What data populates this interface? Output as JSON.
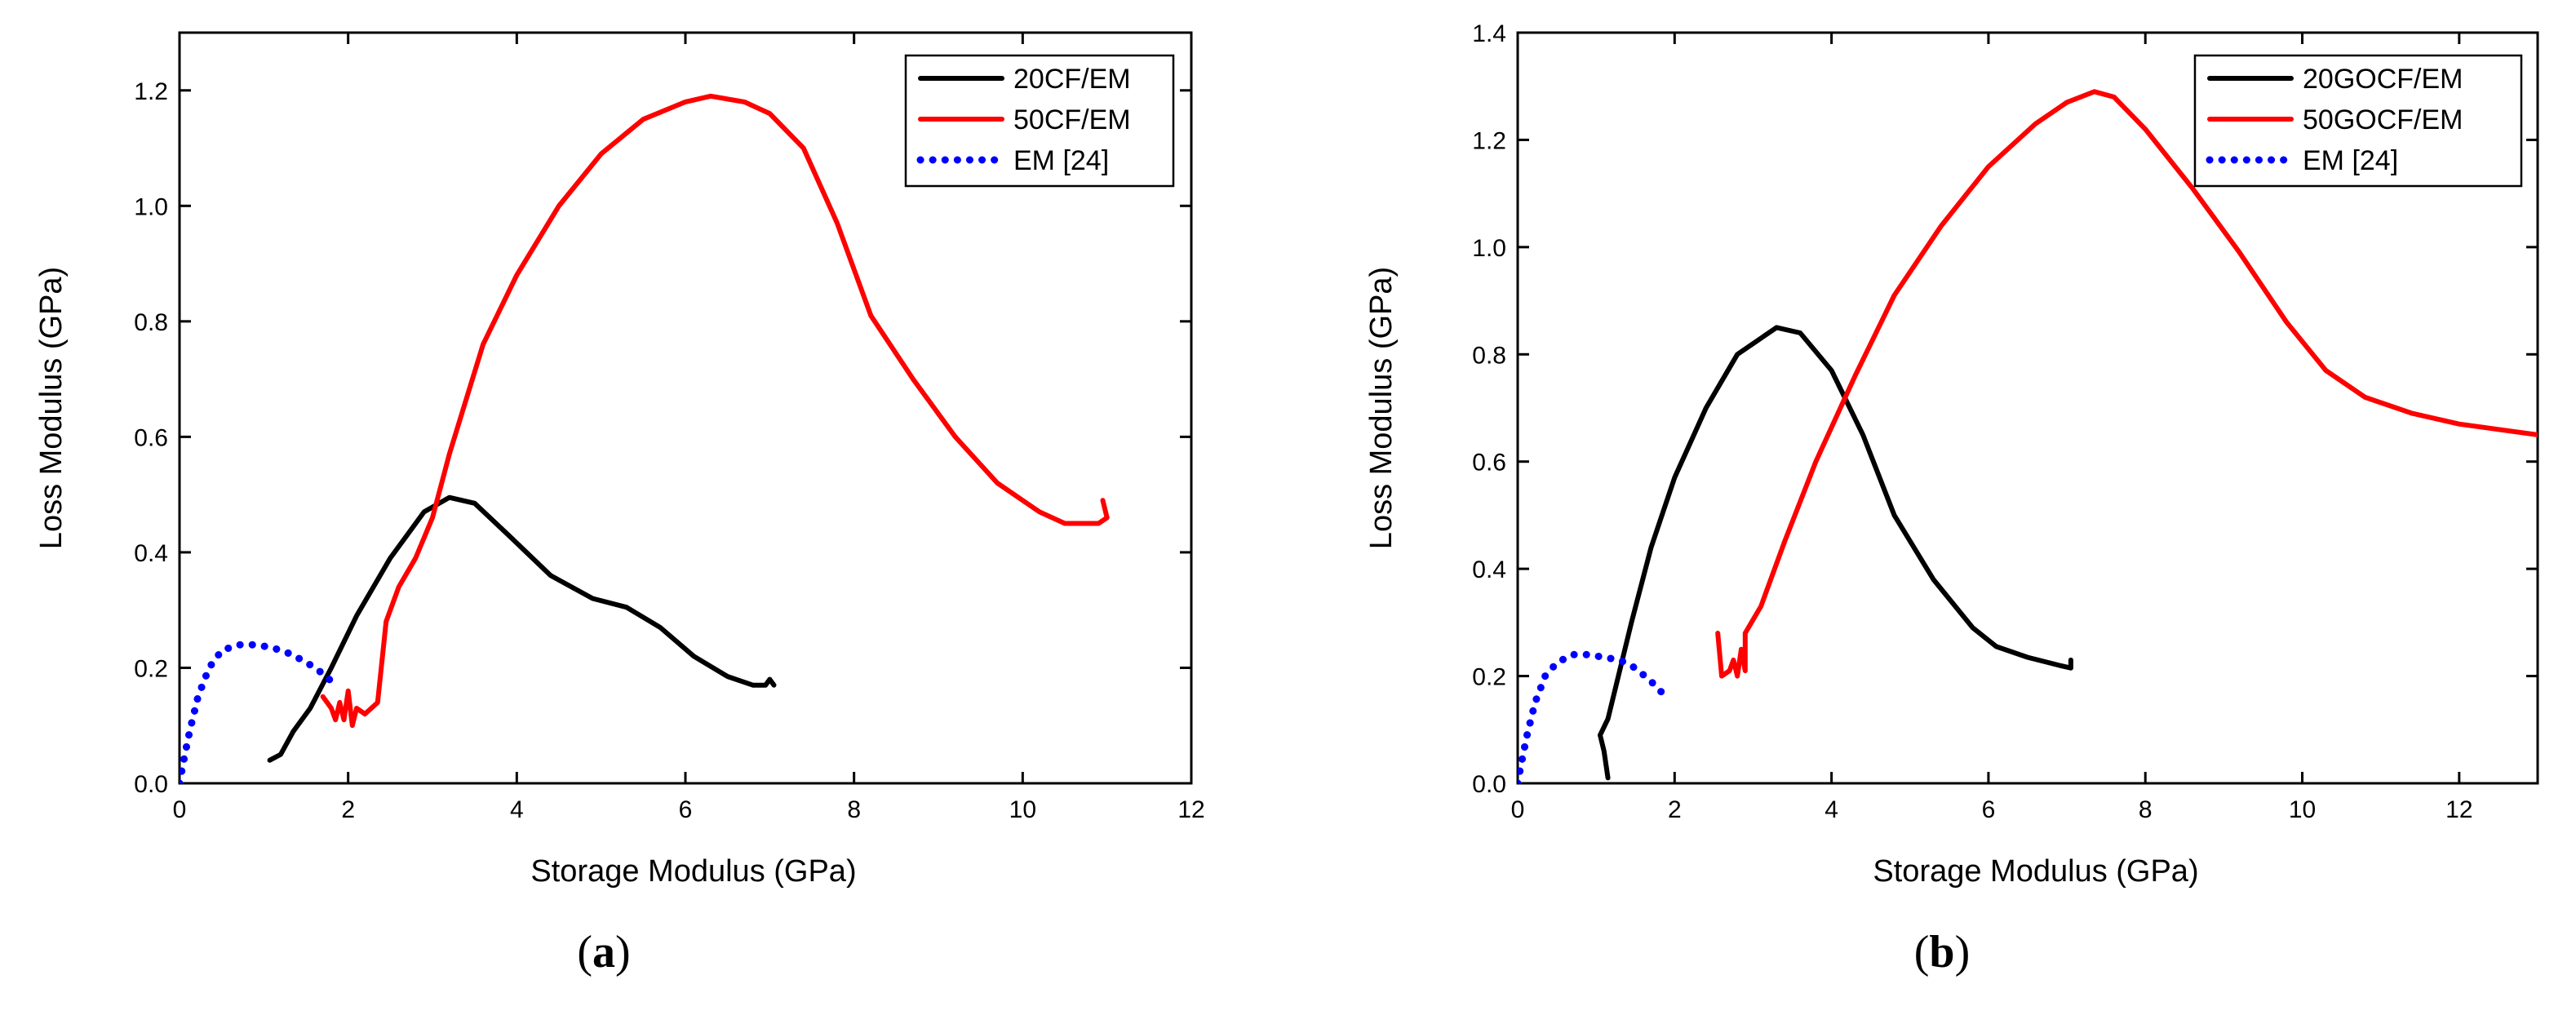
{
  "chart_data": [
    {
      "type": "line",
      "caption": "(a)",
      "caption_bold": "a",
      "xlabel": "Storage Modulus (GPa)",
      "ylabel": "Loss Modulus (GPa)",
      "xlim": [
        0,
        12
      ],
      "ylim": [
        0,
        1.3
      ],
      "xticks": [
        "0",
        "2",
        "4",
        "6",
        "8",
        "10",
        "12"
      ],
      "xtick_values": [
        0,
        2,
        4,
        6,
        8,
        10,
        12
      ],
      "yticks": [
        "0.0",
        "0.2",
        "0.4",
        "0.6",
        "0.8",
        "1.0",
        "1.2"
      ],
      "ytick_values": [
        0,
        0.2,
        0.4,
        0.6,
        0.8,
        1.0,
        1.2
      ],
      "legend_position": "top-right",
      "series": [
        {
          "name": "20CF/EM",
          "color": "#000000",
          "style": "solid",
          "points": [
            [
              1.07,
              0.04
            ],
            [
              1.2,
              0.05
            ],
            [
              1.35,
              0.09
            ],
            [
              1.55,
              0.13
            ],
            [
              1.8,
              0.2
            ],
            [
              2.1,
              0.29
            ],
            [
              2.5,
              0.39
            ],
            [
              2.9,
              0.47
            ],
            [
              3.2,
              0.495
            ],
            [
              3.5,
              0.485
            ],
            [
              3.9,
              0.43
            ],
            [
              4.4,
              0.36
            ],
            [
              4.9,
              0.32
            ],
            [
              5.3,
              0.305
            ],
            [
              5.7,
              0.27
            ],
            [
              6.1,
              0.22
            ],
            [
              6.5,
              0.185
            ],
            [
              6.8,
              0.17
            ],
            [
              6.95,
              0.17
            ],
            [
              7.0,
              0.18
            ],
            [
              7.05,
              0.17
            ]
          ]
        },
        {
          "name": "50CF/EM",
          "color": "#ff0000",
          "style": "solid",
          "points": [
            [
              1.7,
              0.15
            ],
            [
              1.8,
              0.13
            ],
            [
              1.85,
              0.11
            ],
            [
              1.9,
              0.14
            ],
            [
              1.95,
              0.11
            ],
            [
              2.0,
              0.16
            ],
            [
              2.05,
              0.1
            ],
            [
              2.1,
              0.13
            ],
            [
              2.2,
              0.12
            ],
            [
              2.35,
              0.14
            ],
            [
              2.45,
              0.28
            ],
            [
              2.6,
              0.34
            ],
            [
              2.8,
              0.39
            ],
            [
              3.0,
              0.46
            ],
            [
              3.2,
              0.57
            ],
            [
              3.6,
              0.76
            ],
            [
              4.0,
              0.88
            ],
            [
              4.5,
              1.0
            ],
            [
              5.0,
              1.09
            ],
            [
              5.5,
              1.15
            ],
            [
              6.0,
              1.18
            ],
            [
              6.3,
              1.19
            ],
            [
              6.7,
              1.18
            ],
            [
              7.0,
              1.16
            ],
            [
              7.4,
              1.1
            ],
            [
              7.8,
              0.97
            ],
            [
              8.2,
              0.81
            ],
            [
              8.7,
              0.7
            ],
            [
              9.2,
              0.6
            ],
            [
              9.7,
              0.52
            ],
            [
              10.2,
              0.47
            ],
            [
              10.5,
              0.45
            ],
            [
              10.9,
              0.45
            ],
            [
              11.0,
              0.46
            ],
            [
              10.95,
              0.49
            ]
          ]
        },
        {
          "name": "EM [24]",
          "color": "#0000ff",
          "style": "dotted",
          "points": [
            [
              0.0,
              0.0
            ],
            [
              0.05,
              0.04
            ],
            [
              0.12,
              0.09
            ],
            [
              0.22,
              0.15
            ],
            [
              0.35,
              0.2
            ],
            [
              0.5,
              0.23
            ],
            [
              0.7,
              0.24
            ],
            [
              0.9,
              0.24
            ],
            [
              1.1,
              0.235
            ],
            [
              1.3,
              0.225
            ],
            [
              1.5,
              0.21
            ],
            [
              1.7,
              0.19
            ],
            [
              1.85,
              0.17
            ]
          ]
        }
      ]
    },
    {
      "type": "line",
      "caption": "(b)",
      "caption_bold": "b",
      "xlabel": "Storage Modulus (GPa)",
      "ylabel": "Loss Modulus (GPa)",
      "xlim": [
        0,
        13
      ],
      "ylim": [
        0,
        1.4
      ],
      "xticks": [
        "0",
        "2",
        "4",
        "6",
        "8",
        "10",
        "12"
      ],
      "xtick_values": [
        0,
        2,
        4,
        6,
        8,
        10,
        12
      ],
      "yticks": [
        "0.0",
        "0.2",
        "0.4",
        "0.6",
        "0.8",
        "1.0",
        "1.2",
        "1.4"
      ],
      "ytick_values": [
        0,
        0.2,
        0.4,
        0.6,
        0.8,
        1.0,
        1.2,
        1.4
      ],
      "legend_position": "top-right",
      "series": [
        {
          "name": "20GOCF/EM",
          "color": "#000000",
          "style": "solid",
          "points": [
            [
              1.15,
              0.01
            ],
            [
              1.1,
              0.06
            ],
            [
              1.05,
              0.09
            ],
            [
              1.15,
              0.12
            ],
            [
              1.3,
              0.21
            ],
            [
              1.45,
              0.3
            ],
            [
              1.7,
              0.44
            ],
            [
              2.0,
              0.57
            ],
            [
              2.4,
              0.7
            ],
            [
              2.8,
              0.8
            ],
            [
              3.3,
              0.85
            ],
            [
              3.6,
              0.84
            ],
            [
              4.0,
              0.77
            ],
            [
              4.4,
              0.65
            ],
            [
              4.8,
              0.5
            ],
            [
              5.3,
              0.38
            ],
            [
              5.8,
              0.29
            ],
            [
              6.1,
              0.255
            ],
            [
              6.5,
              0.235
            ],
            [
              6.9,
              0.22
            ],
            [
              7.05,
              0.215
            ],
            [
              7.05,
              0.23
            ]
          ]
        },
        {
          "name": "50GOCF/EM",
          "color": "#ff0000",
          "style": "solid",
          "points": [
            [
              2.55,
              0.28
            ],
            [
              2.6,
              0.2
            ],
            [
              2.7,
              0.21
            ],
            [
              2.75,
              0.23
            ],
            [
              2.8,
              0.2
            ],
            [
              2.85,
              0.25
            ],
            [
              2.9,
              0.21
            ],
            [
              2.9,
              0.28
            ],
            [
              3.1,
              0.33
            ],
            [
              3.4,
              0.45
            ],
            [
              3.8,
              0.6
            ],
            [
              4.3,
              0.76
            ],
            [
              4.8,
              0.91
            ],
            [
              5.4,
              1.04
            ],
            [
              6.0,
              1.15
            ],
            [
              6.6,
              1.23
            ],
            [
              7.0,
              1.27
            ],
            [
              7.35,
              1.29
            ],
            [
              7.6,
              1.28
            ],
            [
              8.0,
              1.22
            ],
            [
              8.6,
              1.11
            ],
            [
              9.2,
              0.99
            ],
            [
              9.8,
              0.86
            ],
            [
              10.3,
              0.77
            ],
            [
              10.8,
              0.72
            ],
            [
              11.4,
              0.69
            ],
            [
              12.0,
              0.67
            ],
            [
              12.5,
              0.66
            ],
            [
              13.0,
              0.65
            ]
          ]
        },
        {
          "name": "EM [24]",
          "color": "#0000ff",
          "style": "dotted",
          "points": [
            [
              0.0,
              0.0
            ],
            [
              0.05,
              0.04
            ],
            [
              0.12,
              0.09
            ],
            [
              0.22,
              0.15
            ],
            [
              0.35,
              0.2
            ],
            [
              0.5,
              0.225
            ],
            [
              0.7,
              0.24
            ],
            [
              0.9,
              0.24
            ],
            [
              1.1,
              0.235
            ],
            [
              1.3,
              0.23
            ],
            [
              1.5,
              0.215
            ],
            [
              1.7,
              0.19
            ],
            [
              1.9,
              0.16
            ]
          ]
        }
      ]
    }
  ]
}
